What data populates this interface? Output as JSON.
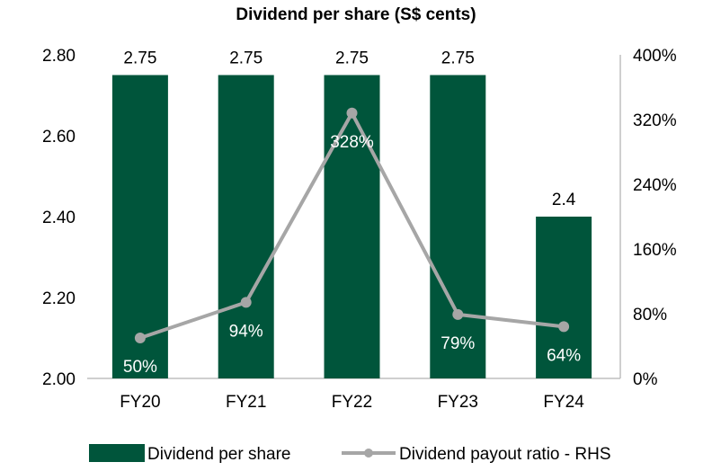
{
  "chart_data": {
    "type": "bar+line",
    "title": "Dividend per share (S$ cents)",
    "categories": [
      "FY20",
      "FY21",
      "FY22",
      "FY23",
      "FY24"
    ],
    "series": [
      {
        "name": "Dividend per share",
        "type": "bar",
        "axis": "left",
        "values": [
          2.75,
          2.75,
          2.75,
          2.75,
          2.4
        ],
        "labels": [
          "2.75",
          "2.75",
          "2.75",
          "2.75",
          "2.4"
        ],
        "color": "#00553B"
      },
      {
        "name": "Dividend payout ratio - RHS",
        "type": "line",
        "axis": "right",
        "values": [
          50,
          94,
          328,
          79,
          64
        ],
        "labels": [
          "50%",
          "94%",
          "328%",
          "79%",
          "64%"
        ],
        "color": "#A6A6A6"
      }
    ],
    "y_left": {
      "range": [
        2.0,
        2.8
      ],
      "ticks": [
        "2.00",
        "2.20",
        "2.40",
        "2.60",
        "2.80"
      ]
    },
    "y_right": {
      "range": [
        0,
        400
      ],
      "ticks": [
        "0%",
        "80%",
        "160%",
        "240%",
        "320%",
        "400%"
      ]
    },
    "grid": false,
    "legend": "bottom"
  }
}
